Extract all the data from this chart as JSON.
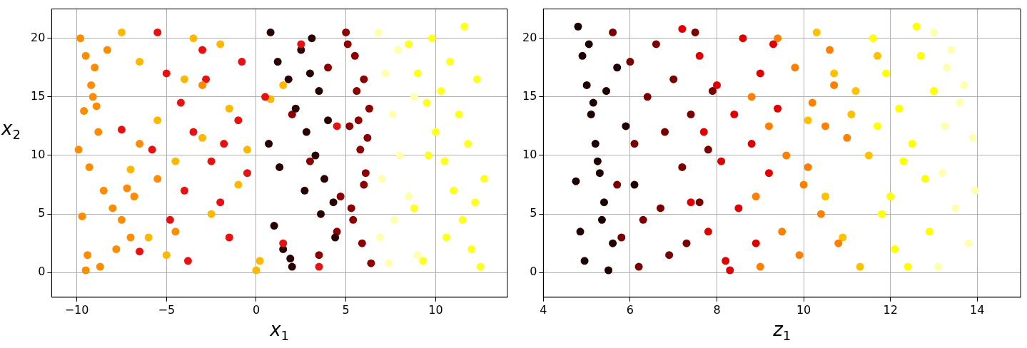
{
  "chart_data": [
    {
      "type": "scatter",
      "xlabel": "x$_{1}$",
      "ylabel": "x$_{2}$",
      "xlim": [
        -11.4,
        14
      ],
      "ylim": [
        -2.1,
        22.5
      ],
      "xticks": [
        -10,
        -5,
        0,
        5,
        10
      ],
      "yticks": [
        0,
        5,
        10,
        15,
        20
      ],
      "grid": true,
      "legend": false,
      "marker": "circle",
      "series": [
        {
          "color": "#ff8c00",
          "x": [
            -9.8,
            -9.5,
            -9.2,
            -9.6,
            -8.8,
            -9.9,
            -9.3,
            -8.5,
            -8.0,
            -7.5,
            -7.0,
            -9.4,
            -8.7,
            -6.8,
            -7.8,
            -9.7,
            -9.1,
            -8.3,
            -6.5,
            -5.5,
            -4.5,
            -3.0,
            -9.5,
            -8.9,
            -7.2,
            -9.0
          ],
          "values": [
            20.0,
            18.5,
            16.0,
            13.8,
            12.0,
            10.5,
            9.0,
            7.0,
            5.5,
            4.5,
            3.0,
            1.5,
            0.5,
            6.5,
            2.0,
            4.8,
            15.0,
            19.0,
            11.0,
            8.0,
            3.5,
            16.0,
            0.2,
            14.2,
            7.2,
            17.5
          ]
        },
        {
          "color": "#e81010",
          "x": [
            -5.5,
            -5.0,
            -4.2,
            -3.5,
            -3.0,
            -2.5,
            -2.0,
            -1.5,
            -1.0,
            -0.5,
            -4.8,
            -3.8,
            -2.8,
            -1.8,
            -0.8,
            -5.8,
            -4.0,
            0.5,
            1.5,
            2.5,
            3.5,
            4.5,
            -6.5,
            -7.5
          ],
          "values": [
            20.5,
            17.0,
            14.5,
            12.0,
            19.0,
            9.5,
            6.0,
            3.0,
            13.0,
            8.5,
            4.5,
            1.0,
            16.5,
            11.0,
            18.0,
            10.5,
            7.0,
            15.0,
            2.5,
            19.5,
            0.5,
            12.5,
            1.8,
            12.2
          ]
        },
        {
          "color": "#ffb800",
          "x": [
            -7.5,
            -6.5,
            -5.5,
            -4.5,
            -3.5,
            -2.5,
            -1.5,
            -0.5,
            0.2,
            -6.0,
            -4.0,
            -2.0,
            -1.0,
            0.0,
            -7.0,
            -3.0,
            -5.0,
            0.8,
            1.5
          ],
          "values": [
            20.5,
            18.0,
            13.0,
            9.5,
            20.0,
            5.0,
            14.0,
            10.5,
            1.0,
            3.0,
            16.5,
            19.5,
            7.5,
            0.2,
            8.8,
            11.5,
            1.5,
            14.8,
            16.0
          ]
        },
        {
          "color": "#2a0000",
          "x": [
            0.8,
            1.2,
            1.8,
            2.2,
            2.8,
            3.3,
            3.8,
            4.3,
            1.0,
            1.5,
            2.0,
            2.5,
            3.0,
            3.5,
            4.0,
            0.7,
            1.3,
            2.7,
            3.6,
            4.4,
            1.9,
            3.1
          ],
          "values": [
            20.5,
            18.0,
            16.5,
            14.0,
            12.0,
            10.0,
            8.0,
            6.0,
            4.0,
            2.0,
            0.5,
            19.0,
            17.0,
            15.5,
            13.0,
            11.0,
            9.0,
            7.0,
            5.0,
            3.0,
            1.2,
            20.0
          ]
        },
        {
          "color": "#8c0000",
          "x": [
            5.0,
            5.5,
            6.0,
            6.3,
            5.2,
            5.8,
            6.1,
            4.7,
            5.4,
            5.9,
            6.4,
            5.1,
            5.6,
            6.2,
            4.0,
            3.0,
            2.0,
            3.5,
            4.5,
            6.0,
            5.3,
            5.7
          ],
          "values": [
            20.5,
            18.5,
            16.5,
            14.0,
            12.5,
            10.5,
            8.5,
            6.5,
            4.5,
            2.5,
            0.8,
            19.5,
            15.5,
            11.5,
            17.5,
            9.5,
            13.5,
            1.5,
            3.5,
            7.5,
            5.5,
            13.0
          ]
        },
        {
          "color": "#ffff20",
          "x": [
            8.5,
            9.0,
            9.5,
            10.0,
            10.5,
            11.0,
            11.5,
            12.0,
            12.5,
            8.8,
            9.3,
            9.8,
            10.3,
            10.8,
            11.3,
            11.8,
            12.3,
            12.7,
            11.6,
            10.6,
            9.6,
            12.2
          ],
          "values": [
            19.5,
            17.0,
            14.5,
            12.0,
            9.5,
            7.0,
            4.5,
            2.0,
            0.5,
            5.5,
            1.0,
            20.0,
            15.5,
            18.0,
            13.5,
            11.0,
            16.5,
            8.0,
            21.0,
            3.0,
            10.0,
            6.0
          ]
        },
        {
          "color": "#ffffb0",
          "x": [
            6.8,
            7.2,
            7.6,
            8.0,
            8.5,
            6.9,
            7.4,
            7.9,
            8.8,
            7.0,
            7.7,
            9.0
          ],
          "values": [
            20.5,
            17.0,
            13.5,
            10.0,
            6.5,
            3.0,
            0.8,
            19.0,
            15.0,
            8.0,
            4.5,
            1.5
          ]
        }
      ]
    },
    {
      "type": "scatter",
      "xlabel": "z$_{1}$",
      "xlim": [
        4,
        15
      ],
      "ylim": [
        -2.1,
        22.5
      ],
      "xticks": [
        4,
        6,
        8,
        10,
        12,
        14
      ],
      "yticks": [
        0,
        5,
        10,
        15,
        20
      ],
      "grid": true,
      "legend": false,
      "marker": "circle",
      "series": [
        {
          "color": "#1e0000",
          "x": [
            4.8,
            4.9,
            5.0,
            5.1,
            5.2,
            5.3,
            5.4,
            4.85,
            4.95,
            5.05,
            5.15,
            5.25,
            5.35,
            5.5,
            5.7,
            5.9,
            6.1,
            5.6,
            4.75,
            5.45
          ],
          "values": [
            21.0,
            18.5,
            16.0,
            13.5,
            11.0,
            8.5,
            6.0,
            3.5,
            1.0,
            19.5,
            14.5,
            9.5,
            4.5,
            0.2,
            17.5,
            12.5,
            7.5,
            2.5,
            7.8,
            15.5
          ]
        },
        {
          "color": "#7a0000",
          "x": [
            5.6,
            6.0,
            6.4,
            6.8,
            7.2,
            7.6,
            5.8,
            6.2,
            6.6,
            7.0,
            7.4,
            7.8,
            5.7,
            6.3,
            6.9,
            7.5,
            6.1,
            6.7,
            7.3,
            7.9
          ],
          "values": [
            20.5,
            18.0,
            15.0,
            12.0,
            9.0,
            6.0,
            3.0,
            0.5,
            19.5,
            16.5,
            13.5,
            10.5,
            7.5,
            4.5,
            1.5,
            20.5,
            11.0,
            5.5,
            2.5,
            15.5
          ]
        },
        {
          "color": "#e00000",
          "x": [
            7.2,
            7.6,
            8.0,
            8.4,
            8.8,
            9.2,
            7.4,
            7.8,
            8.2,
            8.6,
            9.0,
            9.4,
            8.1,
            8.5,
            7.7,
            8.9,
            9.3,
            8.3
          ],
          "values": [
            20.8,
            18.5,
            16.0,
            13.5,
            11.0,
            8.5,
            6.0,
            3.5,
            1.0,
            20.0,
            17.0,
            14.0,
            9.5,
            5.5,
            12.0,
            2.5,
            19.5,
            0.2
          ]
        },
        {
          "color": "#ff8000",
          "x": [
            8.8,
            9.2,
            9.6,
            10.0,
            10.4,
            10.8,
            9.0,
            9.4,
            9.8,
            10.2,
            10.6,
            11.0,
            9.5,
            10.1,
            10.7,
            8.9,
            9.9,
            10.5
          ],
          "values": [
            15.0,
            12.5,
            10.0,
            7.5,
            5.0,
            2.5,
            0.5,
            20.0,
            17.5,
            14.5,
            19.0,
            11.5,
            3.5,
            9.0,
            16.0,
            6.5,
            1.5,
            12.5
          ]
        },
        {
          "color": "#ffc000",
          "x": [
            10.3,
            10.7,
            11.1,
            11.5,
            10.5,
            10.9,
            11.3,
            10.1,
            11.7,
            11.2
          ],
          "values": [
            20.5,
            17.0,
            13.5,
            10.0,
            6.5,
            3.0,
            0.5,
            13.0,
            18.5,
            15.5
          ]
        },
        {
          "color": "#ffff00",
          "x": [
            11.6,
            11.9,
            12.2,
            12.5,
            12.8,
            11.8,
            12.1,
            12.4,
            12.7,
            13.0,
            11.7,
            12.3,
            12.9,
            12.0,
            12.6
          ],
          "values": [
            20.0,
            17.0,
            14.0,
            11.0,
            8.0,
            5.0,
            2.0,
            0.5,
            18.5,
            15.5,
            12.5,
            9.5,
            3.5,
            6.5,
            21.0
          ]
        },
        {
          "color": "#ffffb0",
          "x": [
            13.0,
            13.3,
            13.6,
            13.9,
            13.2,
            13.5,
            13.8,
            13.1,
            13.4,
            13.7,
            13.95,
            13.25
          ],
          "values": [
            20.5,
            17.5,
            14.5,
            11.5,
            8.5,
            5.5,
            2.5,
            0.5,
            19.0,
            16.0,
            7.0,
            12.5
          ]
        }
      ]
    }
  ]
}
